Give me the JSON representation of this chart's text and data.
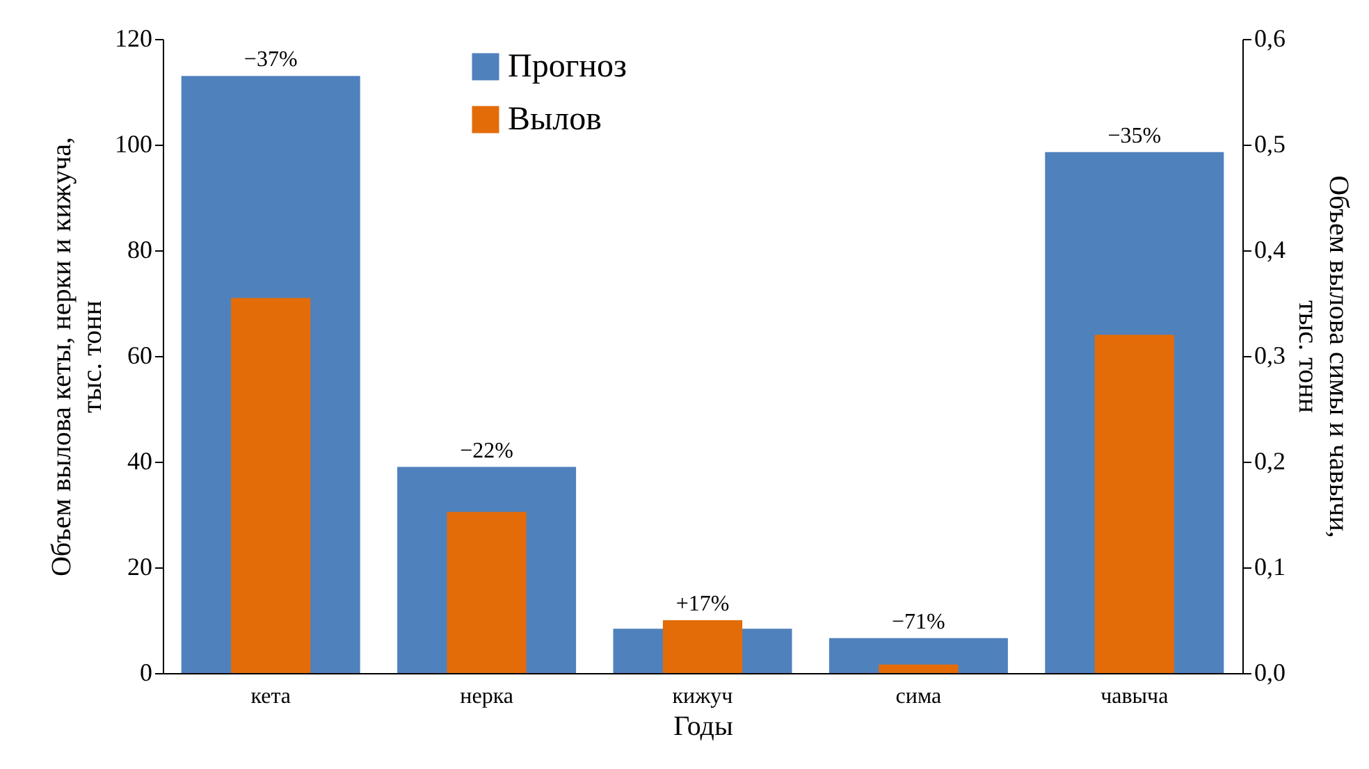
{
  "chart_data": {
    "type": "bar",
    "xlabel": "Годы",
    "ylabel": "Объем вылова кеты, нерки и кижуча, тыс. тонн",
    "y2label": "Объем вылова симы и чавычи, тыс. тонн",
    "categories": [
      "кета",
      "нерка",
      "кижуч",
      "сима",
      "чавыча"
    ],
    "series": [
      {
        "name": "Прогноз",
        "color": "#4f81bd",
        "values": [
          113,
          39,
          8.4,
          null,
          null
        ]
      },
      {
        "name": "Вылов",
        "color": "#e36c09",
        "values": [
          71,
          30.5,
          10,
          null,
          null
        ]
      },
      {
        "color": "#4f81bd",
        "axis": "y2",
        "values": [
          null,
          null,
          null,
          0.033,
          0.493
        ]
      },
      {
        "color": "#e36c09",
        "axis": "y2",
        "values": [
          null,
          null,
          null,
          0.008,
          0.32
        ]
      }
    ],
    "ylim": [
      0,
      120
    ],
    "yticks": [
      0,
      20,
      40,
      60,
      80,
      100,
      120
    ],
    "y2lim": [
      0,
      0.6
    ],
    "y2ticks": [
      {
        "value": 0,
        "label": "0,0"
      },
      {
        "value": 0.1,
        "label": "0,1"
      },
      {
        "value": 0.2,
        "label": "0,2"
      },
      {
        "value": 0.3,
        "label": "0,3"
      },
      {
        "value": 0.4,
        "label": "0,4"
      },
      {
        "value": 0.5,
        "label": "0,5"
      },
      {
        "value": 0.6,
        "label": "0,6"
      }
    ],
    "annotations": [
      {
        "text": "−37%",
        "x": "кета",
        "y": 113
      },
      {
        "text": "−22%",
        "x": "нерка",
        "y": 39
      },
      {
        "text": "+17%",
        "x": "кижуч",
        "y": 10
      },
      {
        "text": "−71%",
        "x": "сима",
        "y": 6.6
      },
      {
        "text": "−35%",
        "x": "чавыча",
        "y": 98.6
      }
    ],
    "legend": "top",
    "grid": false
  }
}
